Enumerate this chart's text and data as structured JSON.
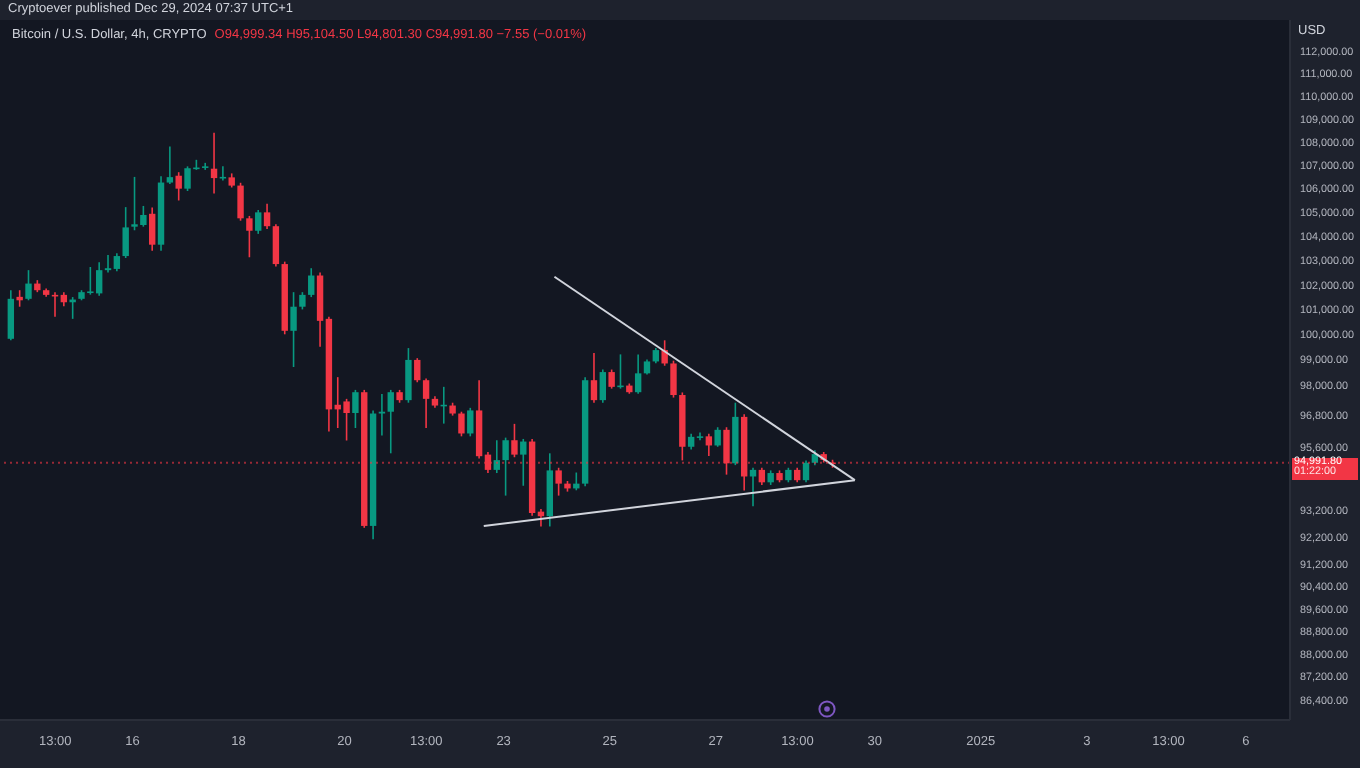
{
  "chart_data": {
    "type": "candlestick",
    "title": "Bitcoin / U.S. Dollar, 4h, CRYPTO",
    "subtitle": "O94,999.34 H95,104.50 L94,801.30 C94,991.80 −7.55 (−0.01%)",
    "ylabel": "USD",
    "log": true,
    "annotations": [
      "Cryptoever published Dec 29, 2024 07:37 UTC+1",
      "01:22:00"
    ],
    "x": [
      "2024-12-13T17:00",
      "2024-12-13T21:00",
      "2024-12-14T01:00",
      "2024-12-14T05:00",
      "2024-12-14T09:00",
      "2024-12-14T13:00",
      "2024-12-14T17:00",
      "2024-12-14T21:00",
      "2024-12-15T01:00",
      "2024-12-15T05:00",
      "2024-12-15T09:00",
      "2024-12-15T13:00",
      "2024-12-15T17:00",
      "2024-12-15T21:00",
      "2024-12-16T01:00",
      "2024-12-16T05:00",
      "2024-12-16T09:00",
      "2024-12-16T13:00",
      "2024-12-16T17:00",
      "2024-12-16T21:00",
      "2024-12-17T01:00",
      "2024-12-17T05:00",
      "2024-12-17T09:00",
      "2024-12-17T13:00",
      "2024-12-17T17:00",
      "2024-12-17T21:00",
      "2024-12-18T01:00",
      "2024-12-18T05:00",
      "2024-12-18T09:00",
      "2024-12-18T13:00",
      "2024-12-18T17:00",
      "2024-12-18T21:00",
      "2024-12-19T01:00",
      "2024-12-19T05:00",
      "2024-12-19T09:00",
      "2024-12-19T13:00",
      "2024-12-19T17:00",
      "2024-12-19T21:00",
      "2024-12-20T01:00",
      "2024-12-20T05:00",
      "2024-12-20T09:00",
      "2024-12-20T13:00",
      "2024-12-20T17:00",
      "2024-12-20T21:00",
      "2024-12-21T01:00",
      "2024-12-21T05:00",
      "2024-12-21T09:00",
      "2024-12-21T13:00",
      "2024-12-21T17:00",
      "2024-12-21T21:00",
      "2024-12-22T01:00",
      "2024-12-22T05:00",
      "2024-12-22T09:00",
      "2024-12-22T13:00",
      "2024-12-22T17:00",
      "2024-12-22T21:00",
      "2024-12-23T01:00",
      "2024-12-23T05:00",
      "2024-12-23T09:00",
      "2024-12-23T13:00",
      "2024-12-23T17:00",
      "2024-12-23T21:00",
      "2024-12-24T01:00",
      "2024-12-24T05:00",
      "2024-12-24T09:00",
      "2024-12-24T13:00",
      "2024-12-24T17:00",
      "2024-12-24T21:00",
      "2024-12-25T01:00",
      "2024-12-25T05:00",
      "2024-12-25T09:00",
      "2024-12-25T13:00",
      "2024-12-25T17:00",
      "2024-12-25T21:00",
      "2024-12-26T01:00",
      "2024-12-26T05:00",
      "2024-12-26T09:00",
      "2024-12-26T13:00",
      "2024-12-26T17:00",
      "2024-12-26T21:00",
      "2024-12-27T01:00",
      "2024-12-27T05:00",
      "2024-12-27T09:00",
      "2024-12-27T13:00",
      "2024-12-27T17:00",
      "2024-12-27T21:00",
      "2024-12-28T01:00",
      "2024-12-28T05:00",
      "2024-12-28T09:00",
      "2024-12-28T13:00",
      "2024-12-28T17:00",
      "2024-12-28T21:00",
      "2024-12-29T01:00",
      "2024-12-29T05:00"
    ],
    "ohlc": [
      [
        99820,
        101780,
        99760,
        101430
      ],
      [
        101510,
        101780,
        101110,
        101370
      ],
      [
        101430,
        102600,
        101370,
        102050
      ],
      [
        102050,
        102190,
        101700,
        101780
      ],
      [
        101780,
        101850,
        101510,
        101590
      ],
      [
        101590,
        101700,
        100700,
        101560
      ],
      [
        101590,
        101700,
        101130,
        101290
      ],
      [
        101290,
        101500,
        100620,
        101400
      ],
      [
        101430,
        101780,
        101370,
        101700
      ],
      [
        101700,
        102730,
        101600,
        101730
      ],
      [
        101650,
        102920,
        101550,
        102600
      ],
      [
        102600,
        103220,
        102500,
        102680
      ],
      [
        102650,
        103300,
        102550,
        103180
      ],
      [
        103180,
        105220,
        103100,
        104370
      ],
      [
        104400,
        106500,
        104250,
        104500
      ],
      [
        104470,
        105270,
        104400,
        104890
      ],
      [
        104940,
        105200,
        103400,
        103650
      ],
      [
        103650,
        106530,
        103400,
        106260
      ],
      [
        106260,
        107800,
        106200,
        106490
      ],
      [
        106550,
        106700,
        105500,
        106000
      ],
      [
        106000,
        106950,
        105900,
        106870
      ],
      [
        106870,
        107230,
        106800,
        106900
      ],
      [
        106900,
        107100,
        106800,
        106950
      ],
      [
        106850,
        108400,
        105800,
        106450
      ],
      [
        106450,
        106950,
        106350,
        106500
      ],
      [
        106480,
        106650,
        106050,
        106130
      ],
      [
        106130,
        106250,
        104650,
        104750
      ],
      [
        104750,
        104850,
        103130,
        104230
      ],
      [
        104230,
        105100,
        104100,
        105000
      ],
      [
        105000,
        105360,
        104300,
        104420
      ],
      [
        104420,
        104500,
        102750,
        102850
      ],
      [
        102850,
        102950,
        100000,
        100140
      ],
      [
        100140,
        101700,
        98700,
        101110
      ],
      [
        101110,
        101700,
        101000,
        101590
      ],
      [
        101590,
        102680,
        101500,
        102380
      ],
      [
        102380,
        102500,
        99500,
        100540
      ],
      [
        100620,
        100700,
        96190,
        97040
      ],
      [
        97220,
        98300,
        96320,
        97040
      ],
      [
        97350,
        97450,
        95840,
        96900
      ],
      [
        96900,
        97800,
        96320,
        97710
      ],
      [
        97710,
        97800,
        92550,
        92620
      ],
      [
        92620,
        97000,
        92130,
        96880
      ],
      [
        96880,
        97640,
        96030,
        96950
      ],
      [
        96950,
        97800,
        95350,
        97710
      ],
      [
        97710,
        97800,
        97300,
        97400
      ],
      [
        97400,
        99450,
        97300,
        98980
      ],
      [
        98980,
        99050,
        98100,
        98180
      ],
      [
        98180,
        98250,
        96320,
        97450
      ],
      [
        97450,
        97550,
        97100,
        97190
      ],
      [
        97190,
        97920,
        96490,
        97220
      ],
      [
        97190,
        97300,
        96800,
        96880
      ],
      [
        96880,
        96950,
        96000,
        96110
      ],
      [
        96110,
        97100,
        96000,
        97000
      ],
      [
        97000,
        98180,
        95150,
        95240
      ],
      [
        95300,
        95400,
        94600,
        94720
      ],
      [
        94720,
        95850,
        94600,
        95090
      ],
      [
        95090,
        95950,
        93750,
        95850
      ],
      [
        95850,
        96480,
        95200,
        95300
      ],
      [
        95300,
        95900,
        94120,
        95800
      ],
      [
        95800,
        95900,
        93000,
        93100
      ],
      [
        93150,
        93250,
        92600,
        92980
      ],
      [
        92980,
        95350,
        92600,
        94700
      ],
      [
        94700,
        94800,
        93750,
        94200
      ],
      [
        94200,
        94300,
        93900,
        94020
      ],
      [
        94020,
        94620,
        93950,
        94200
      ],
      [
        94200,
        98300,
        94100,
        98180
      ],
      [
        98180,
        99250,
        97300,
        97400
      ],
      [
        97400,
        98600,
        97300,
        98500
      ],
      [
        98500,
        98600,
        97850,
        97920
      ],
      [
        97920,
        99200,
        97850,
        97970
      ],
      [
        97970,
        98050,
        97650,
        97710
      ],
      [
        97710,
        99200,
        97650,
        98450
      ],
      [
        98450,
        99000,
        98400,
        98920
      ],
      [
        98920,
        99450,
        98850,
        99370
      ],
      [
        99370,
        99760,
        98750,
        98840
      ],
      [
        98840,
        98950,
        97500,
        97600
      ],
      [
        97600,
        97700,
        95080,
        95600
      ],
      [
        95600,
        96100,
        95500,
        95980
      ],
      [
        95980,
        96150,
        95850,
        96000
      ],
      [
        96000,
        96100,
        95250,
        95650
      ],
      [
        95650,
        96350,
        95600,
        96250
      ],
      [
        96250,
        96350,
        94540,
        94970
      ],
      [
        94970,
        97300,
        94900,
        96750
      ],
      [
        96750,
        96850,
        93940,
        94470
      ],
      [
        94470,
        94800,
        93350,
        94720
      ],
      [
        94720,
        94800,
        94150,
        94250
      ],
      [
        94250,
        94700,
        94150,
        94600
      ],
      [
        94600,
        94700,
        94250,
        94330
      ],
      [
        94330,
        94800,
        94250,
        94720
      ],
      [
        94720,
        94800,
        94250,
        94330
      ],
      [
        94330,
        95080,
        94250,
        94990
      ],
      [
        94990,
        95470,
        94900,
        95320
      ],
      [
        95320,
        95400,
        95000,
        95100
      ],
      [
        94999.34,
        95104.5,
        94801.3,
        94991.8
      ]
    ],
    "colors": [
      "#089981",
      "#f23645",
      "#089981",
      "#f23645",
      "#f23645",
      "#f23645",
      "#f23645",
      "#089981",
      "#089981",
      "#089981",
      "#089981",
      "#089981",
      "#089981",
      "#089981",
      "#089981",
      "#089981",
      "#f23645",
      "#089981",
      "#089981",
      "#f23645",
      "#089981",
      "#089981",
      "#089981",
      "#f23645",
      "#089981",
      "#f23645",
      "#f23645",
      "#f23645",
      "#089981",
      "#f23645",
      "#f23645",
      "#f23645",
      "#089981",
      "#089981",
      "#089981",
      "#f23645",
      "#f23645",
      "#f23645",
      "#f23645",
      "#089981",
      "#f23645",
      "#089981",
      "#089981",
      "#089981",
      "#f23645",
      "#089981",
      "#f23645",
      "#f23645",
      "#f23645",
      "#089981",
      "#f23645",
      "#f23645",
      "#089981",
      "#f23645",
      "#f23645",
      "#089981",
      "#089981",
      "#f23645",
      "#089981",
      "#f23645",
      "#f23645",
      "#089981",
      "#f23645",
      "#f23645",
      "#089981",
      "#089981",
      "#f23645",
      "#089981",
      "#f23645",
      "#089981",
      "#f23645",
      "#089981",
      "#089981",
      "#089981",
      "#f23645",
      "#f23645",
      "#f23645",
      "#089981",
      "#089981",
      "#f23645",
      "#089981",
      "#f23645",
      "#089981",
      "#f23645",
      "#089981",
      "#f23645",
      "#089981",
      "#f23645",
      "#089981",
      "#f23645",
      "#089981",
      "#089981",
      "#f23645",
      "#f23645"
    ],
    "series": [
      {
        "type": "line",
        "color": "#d1d4dc",
        "x": [
          "2024-12-23T23:00",
          "2024-12-29T15:00"
        ],
        "values": [
          102330,
          94330
        ]
      },
      {
        "type": "line",
        "color": "#d1d4dc",
        "x": [
          "2024-12-22T15:00",
          "2024-12-29T15:00"
        ],
        "values": [
          92620,
          94330
        ]
      }
    ],
    "ref_lines": [
      {
        "axis": "y",
        "value": 94991.8,
        "label": "94,991.80",
        "color": "#f23645",
        "line_style": "dotted"
      }
    ],
    "xlim": [
      "2024-12-13T12:00",
      "2025-01-06T20:00"
    ],
    "xticks": [
      {
        "value": "2024-12-14T13:00",
        "label": "13:00"
      },
      {
        "value": "2024-12-16",
        "label": "16"
      },
      {
        "value": "2024-12-18",
        "label": "18"
      },
      {
        "value": "2024-12-20",
        "label": "20"
      },
      {
        "value": "2024-12-21T13:00",
        "label": "13:00"
      },
      {
        "value": "2024-12-23",
        "label": "23"
      },
      {
        "value": "2024-12-25",
        "label": "25"
      },
      {
        "value": "2024-12-27",
        "label": "27"
      },
      {
        "value": "2024-12-28T13:00",
        "label": "13:00"
      },
      {
        "value": "2024-12-30",
        "label": "30"
      },
      {
        "value": "2025-01-01",
        "label": "2025"
      },
      {
        "value": "2025-01-03",
        "label": "3"
      },
      {
        "value": "2025-01-04T13:00",
        "label": "13:00"
      },
      {
        "value": "2025-01-06",
        "label": "6"
      }
    ],
    "ylim": [
      85700,
      113400
    ],
    "yticks": [
      {
        "value": 112000,
        "label": "112,000.00"
      },
      {
        "value": 111000,
        "label": "111,000.00"
      },
      {
        "value": 110000,
        "label": "110,000.00"
      },
      {
        "value": 109000,
        "label": "109,000.00"
      },
      {
        "value": 108000,
        "label": "108,000.00"
      },
      {
        "value": 107000,
        "label": "107,000.00"
      },
      {
        "value": 106000,
        "label": "106,000.00"
      },
      {
        "value": 105000,
        "label": "105,000.00"
      },
      {
        "value": 104000,
        "label": "104,000.00"
      },
      {
        "value": 103000,
        "label": "103,000.00"
      },
      {
        "value": 102000,
        "label": "102,000.00"
      },
      {
        "value": 101000,
        "label": "101,000.00"
      },
      {
        "value": 100000,
        "label": "100,000.00"
      },
      {
        "value": 99000,
        "label": "99,000.00"
      },
      {
        "value": 98000,
        "label": "98,000.00"
      },
      {
        "value": 96800,
        "label": "96,800.00"
      },
      {
        "value": 95600,
        "label": "95,600.00"
      },
      {
        "value": 93200,
        "label": "93,200.00"
      },
      {
        "value": 92200,
        "label": "92,200.00"
      },
      {
        "value": 91200,
        "label": "91,200.00"
      },
      {
        "value": 90400,
        "label": "90,400.00"
      },
      {
        "value": 89600,
        "label": "89,600.00"
      },
      {
        "value": 88800,
        "label": "88,800.00"
      },
      {
        "value": 88000,
        "label": "88,000.00"
      },
      {
        "value": 87200,
        "label": "87,200.00"
      },
      {
        "value": 86400,
        "label": "86,400.00"
      }
    ]
  }
}
